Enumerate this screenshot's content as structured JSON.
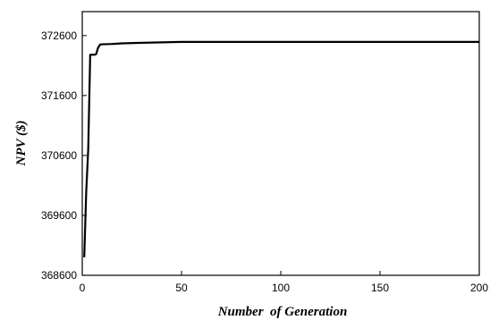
{
  "chart_data": {
    "type": "line",
    "title": "",
    "xlabel": "Number  of Generation",
    "ylabel": "NPV ($)",
    "xlim": [
      0,
      200
    ],
    "ylim": [
      368600,
      373000
    ],
    "x_ticks": [
      0,
      50,
      100,
      150,
      200
    ],
    "y_ticks": [
      368600,
      369600,
      370600,
      371600,
      372600
    ],
    "x_tick_labels": [
      "0",
      "50",
      "100",
      "150",
      "200"
    ],
    "y_tick_labels": [
      "368600",
      "369600",
      "370600",
      "371600",
      "372600"
    ],
    "grid": false,
    "legend": "none",
    "line_color": "#000000",
    "series": [
      {
        "x": [
          1,
          2,
          3,
          4,
          5,
          6,
          7,
          8,
          9,
          10,
          15,
          20,
          30,
          50,
          100,
          150,
          200
        ],
        "y": [
          368900,
          370000,
          370700,
          372280,
          372280,
          372280,
          372290,
          372400,
          372450,
          372455,
          372460,
          372470,
          372480,
          372495,
          372495,
          372495,
          372495
        ]
      }
    ]
  }
}
